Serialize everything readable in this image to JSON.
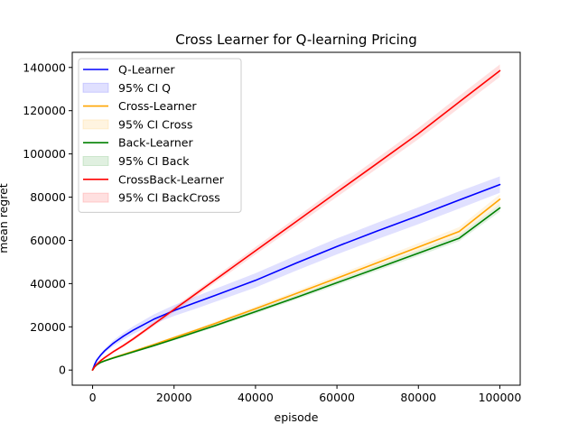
{
  "chart_data": {
    "type": "line",
    "title": "Cross Learner for Q-learning Pricing",
    "xlabel": "episode",
    "ylabel": "mean regret",
    "xlim": [
      -5000,
      105000
    ],
    "ylim": [
      -7000,
      147000
    ],
    "xticks": [
      0,
      20000,
      40000,
      60000,
      80000,
      100000
    ],
    "yticks": [
      0,
      20000,
      40000,
      60000,
      80000,
      100000,
      120000,
      140000
    ],
    "grid": false,
    "legend_position": "top-left",
    "x": [
      0,
      500,
      1000,
      2000,
      3000,
      5000,
      7500,
      10000,
      15000,
      20000,
      25000,
      30000,
      40000,
      50000,
      60000,
      70000,
      80000,
      90000,
      100000
    ],
    "series": [
      {
        "name": "Q-Learner",
        "color": "#0000ff",
        "values": [
          0,
          2600,
          4500,
          7000,
          9000,
          12300,
          15600,
          18500,
          23500,
          27500,
          31000,
          34500,
          41500,
          49500,
          57200,
          64400,
          71400,
          78700,
          85800
        ],
        "ci": {
          "name": "95% CI Q",
          "color": "#0000ff",
          "lower": [
            0,
            2300,
            4000,
            6300,
            8100,
            11000,
            14000,
            16700,
            21300,
            25000,
            28200,
            31500,
            38200,
            46000,
            53500,
            60600,
            67500,
            74700,
            82000
          ],
          "upper": [
            0,
            2900,
            5000,
            7700,
            9900,
            13600,
            17200,
            20300,
            25700,
            30000,
            33800,
            37500,
            44800,
            53000,
            60900,
            68200,
            75300,
            82700,
            89600
          ]
        }
      },
      {
        "name": "Cross-Learner",
        "color": "#ffa500",
        "values": [
          0,
          1600,
          2500,
          3700,
          4400,
          5700,
          7200,
          8700,
          11800,
          15000,
          18200,
          21500,
          28400,
          35400,
          42500,
          49700,
          56900,
          64100,
          79000
        ],
        "ci": {
          "name": "95% CI Cross",
          "color": "#ffa500",
          "lower": [
            0,
            1450,
            2300,
            3450,
            4150,
            5400,
            6850,
            8300,
            11300,
            14400,
            17500,
            20700,
            27400,
            34200,
            41100,
            48100,
            55100,
            62100,
            76700
          ],
          "upper": [
            0,
            1750,
            2700,
            3950,
            4650,
            6000,
            7550,
            9100,
            12300,
            15600,
            18900,
            22300,
            29400,
            36600,
            43900,
            51300,
            58700,
            66100,
            81300
          ]
        }
      },
      {
        "name": "Back-Learner",
        "color": "#008000",
        "values": [
          0,
          1500,
          2400,
          3550,
          4250,
          5500,
          6950,
          8400,
          11300,
          14300,
          17400,
          20500,
          27000,
          33600,
          40400,
          47200,
          54100,
          61000,
          75000
        ],
        "ci": {
          "name": "95% CI Back",
          "color": "#008000",
          "lower": [
            0,
            1350,
            2200,
            3300,
            4000,
            5200,
            6600,
            8000,
            10800,
            13750,
            16750,
            19800,
            26100,
            32600,
            39300,
            46000,
            52800,
            59600,
            73300
          ],
          "upper": [
            0,
            1650,
            2600,
            3800,
            4500,
            5800,
            7300,
            8800,
            11800,
            14850,
            18050,
            21200,
            27900,
            34600,
            41500,
            48400,
            55400,
            62400,
            76700
          ]
        }
      },
      {
        "name": "CrossBack-Learner",
        "color": "#ff0000",
        "values": [
          0,
          1500,
          2700,
          4400,
          5800,
          8400,
          11300,
          14400,
          21200,
          28000,
          34800,
          41600,
          55200,
          68700,
          82300,
          95800,
          109400,
          124000,
          138500
        ],
        "ci": {
          "name": "95% CI BackCross",
          "color": "#ff0000",
          "lower": [
            0,
            1350,
            2450,
            4050,
            5350,
            7800,
            10600,
            13600,
            20200,
            26900,
            33500,
            40200,
            53500,
            66800,
            80100,
            93400,
            106800,
            121200,
            135600
          ],
          "upper": [
            0,
            1650,
            2950,
            4750,
            6250,
            9000,
            12000,
            15200,
            22200,
            29100,
            36100,
            43000,
            56900,
            70600,
            84500,
            98200,
            112000,
            126800,
            141400
          ]
        }
      }
    ]
  }
}
